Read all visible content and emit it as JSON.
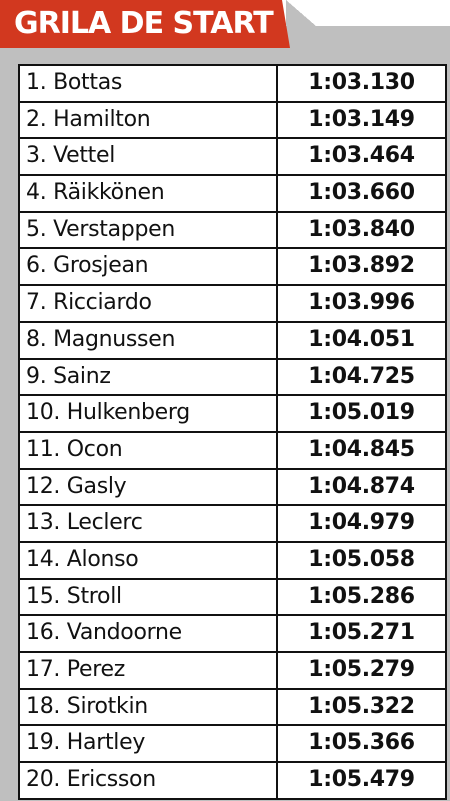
{
  "title": "GRILA DE START",
  "colors": {
    "accent": "#d2381f",
    "panel": "#bfbfbf"
  },
  "rows": [
    {
      "name": "1. Bottas",
      "time": "1:03.130"
    },
    {
      "name": "2. Hamilton",
      "time": "1:03.149"
    },
    {
      "name": "3. Vettel",
      "time": "1:03.464"
    },
    {
      "name": "4. Räikkönen",
      "time": "1:03.660"
    },
    {
      "name": "5. Verstappen",
      "time": "1:03.840"
    },
    {
      "name": "6. Grosjean",
      "time": "1:03.892"
    },
    {
      "name": "7. Ricciardo",
      "time": "1:03.996"
    },
    {
      "name": "8. Magnussen",
      "time": "1:04.051"
    },
    {
      "name": "9. Sainz",
      "time": "1:04.725"
    },
    {
      "name": "10. Hulkenberg",
      "time": "1:05.019"
    },
    {
      "name": "11. Ocon",
      "time": "1:04.845"
    },
    {
      "name": "12. Gasly",
      "time": "1:04.874"
    },
    {
      "name": "13. Leclerc",
      "time": "1:04.979"
    },
    {
      "name": "14. Alonso",
      "time": "1:05.058"
    },
    {
      "name": "15. Stroll",
      "time": "1:05.286"
    },
    {
      "name": "16. Vandoorne",
      "time": "1:05.271"
    },
    {
      "name": "17. Perez",
      "time": "1:05.279"
    },
    {
      "name": "18. Sirotkin",
      "time": "1:05.322"
    },
    {
      "name": "19. Hartley",
      "time": "1:05.366"
    },
    {
      "name": "20. Ericsson",
      "time": "1:05.479"
    }
  ]
}
